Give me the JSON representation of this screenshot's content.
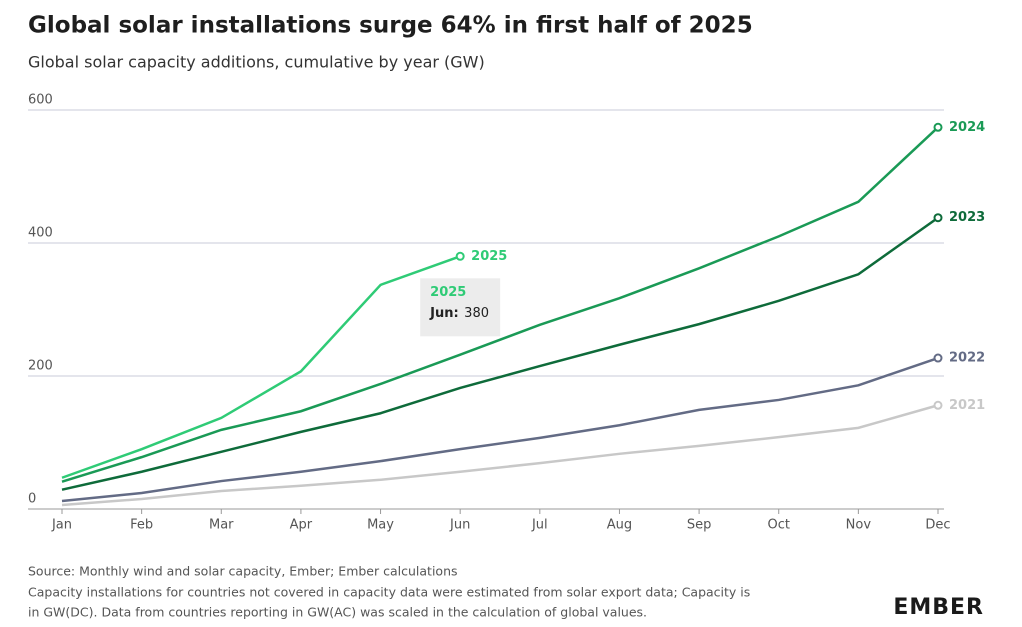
{
  "chart_data": {
    "type": "line",
    "title": "Global solar installations surge 64% in first half of 2025",
    "subtitle": "Global solar capacity additions, cumulative by year (GW)",
    "categories": [
      "Jan",
      "Feb",
      "Mar",
      "Apr",
      "May",
      "Jun",
      "Jul",
      "Aug",
      "Sep",
      "Oct",
      "Nov",
      "Dec"
    ],
    "series": [
      {
        "name": "2025",
        "color": "#2fcb76",
        "values": [
          47,
          90,
          137,
          207,
          337,
          380,
          null,
          null,
          null,
          null,
          null,
          null
        ]
      },
      {
        "name": "2024",
        "color": "#1a9a56",
        "values": [
          41,
          78,
          119,
          147,
          188,
          232,
          277,
          317,
          362,
          410,
          462,
          574
        ]
      },
      {
        "name": "2023",
        "color": "#0e6b3a",
        "values": [
          29,
          56,
          86,
          116,
          144,
          182,
          215,
          247,
          278,
          313,
          353,
          438
        ]
      },
      {
        "name": "2022",
        "color": "#636b85",
        "values": [
          12,
          24,
          42,
          56,
          72,
          90,
          107,
          126,
          149,
          164,
          186,
          227
        ]
      },
      {
        "name": "2021",
        "color": "#c8c8c8",
        "values": [
          6,
          15,
          27,
          35,
          44,
          56,
          69,
          83,
          95,
          108,
          122,
          156
        ]
      }
    ],
    "ylim": [
      0,
      600
    ],
    "yticks": [
      0,
      200,
      400,
      600
    ],
    "grid": true,
    "tooltip": {
      "label": "Jun:"
    },
    "source": [
      "Source: Monthly wind and solar capacity, Ember; Ember calculations",
      "Capacity installations for countries not covered in capacity data were estimated from solar export data; Capacity is",
      "in GW(DC). Data from countries reporting in GW(AC) was scaled in the calculation of global values."
    ],
    "logo": "EMBER"
  }
}
